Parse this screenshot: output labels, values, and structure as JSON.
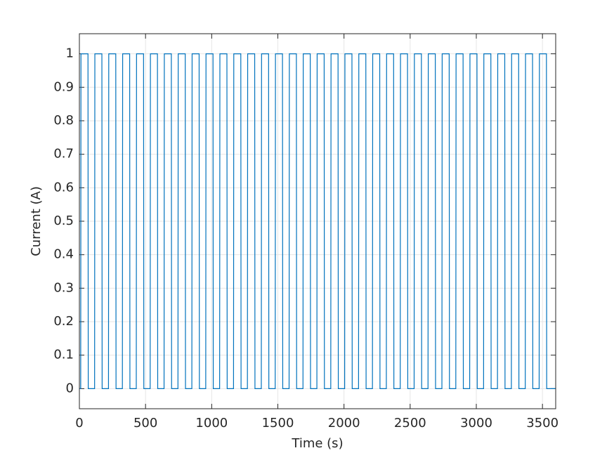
{
  "chart_data": {
    "type": "line",
    "xlabel": "Time (s)",
    "ylabel": "Current (A)",
    "series": [
      {
        "color": "#0072bd",
        "x": [
          0,
          10,
          12,
          65,
          67,
          115,
          117,
          170,
          172,
          220,
          222,
          275,
          277,
          325,
          327,
          380,
          382,
          430,
          432,
          485,
          487,
          535,
          537,
          590,
          592,
          640,
          642,
          695,
          697,
          745,
          747,
          800,
          802,
          850,
          852,
          905,
          907,
          955,
          957,
          1010,
          1012,
          1060,
          1062,
          1115,
          1117,
          1165,
          1167,
          1220,
          1222,
          1270,
          1272,
          1325,
          1327,
          1375,
          1377,
          1430,
          1432,
          1480,
          1482,
          1535,
          1537,
          1585,
          1587,
          1640,
          1642,
          1690,
          1692,
          1745,
          1747,
          1795,
          1797,
          1850,
          1852,
          1900,
          1902,
          1955,
          1957,
          2005,
          2007,
          2060,
          2062,
          2110,
          2112,
          2165,
          2167,
          2215,
          2217,
          2270,
          2272,
          2320,
          2322,
          2375,
          2377,
          2425,
          2427,
          2480,
          2482,
          2530,
          2532,
          2585,
          2587,
          2635,
          2637,
          2690,
          2692,
          2740,
          2742,
          2795,
          2797,
          2845,
          2847,
          2900,
          2902,
          2950,
          2952,
          3005,
          3007,
          3055,
          3057,
          3110,
          3112,
          3160,
          3162,
          3215,
          3217,
          3265,
          3267,
          3320,
          3322,
          3370,
          3372,
          3425,
          3427,
          3475,
          3477,
          3530,
          3532,
          3600
        ],
        "values": [
          0,
          0,
          1,
          1,
          0,
          0,
          1,
          1,
          0,
          0,
          1,
          1,
          0,
          0,
          1,
          1,
          0,
          0,
          1,
          1,
          0,
          0,
          1,
          1,
          0,
          0,
          1,
          1,
          0,
          0,
          1,
          1,
          0,
          0,
          1,
          1,
          0,
          0,
          1,
          1,
          0,
          0,
          1,
          1,
          0,
          0,
          1,
          1,
          0,
          0,
          1,
          1,
          0,
          0,
          1,
          1,
          0,
          0,
          1,
          1,
          0,
          0,
          1,
          1,
          0,
          0,
          1,
          1,
          0,
          0,
          1,
          1,
          0,
          0,
          1,
          1,
          0,
          0,
          1,
          1,
          0,
          0,
          1,
          1,
          0,
          0,
          1,
          1,
          0,
          0,
          1,
          1,
          0,
          0,
          1,
          1,
          0,
          0,
          1,
          1,
          0,
          0,
          1,
          1,
          0,
          0,
          1,
          1,
          0,
          0,
          1,
          1,
          0,
          0,
          1,
          1,
          0,
          0,
          1,
          1,
          0,
          0,
          1,
          1,
          0,
          0,
          1,
          1,
          0,
          0,
          1,
          1,
          0,
          0,
          1,
          1,
          0,
          0
        ]
      }
    ],
    "xlim": [
      0,
      3600
    ],
    "ylim": [
      -0.06,
      1.06
    ],
    "xticks": [
      0,
      500,
      1000,
      1500,
      2000,
      2500,
      3000,
      3500
    ],
    "yticks": [
      0,
      0.1,
      0.2,
      0.3,
      0.4,
      0.5,
      0.6,
      0.7,
      0.8,
      0.9,
      1
    ],
    "grid": true
  }
}
